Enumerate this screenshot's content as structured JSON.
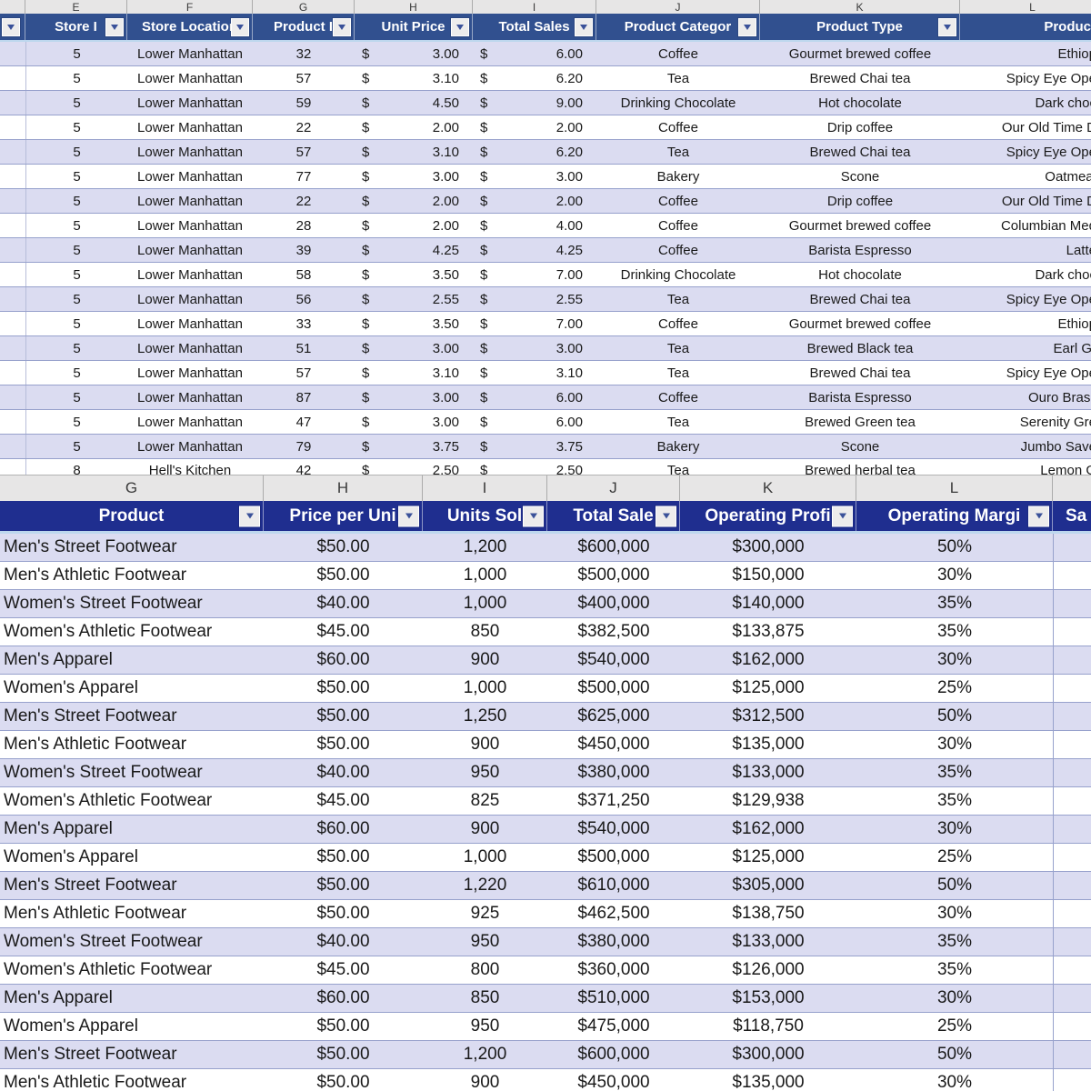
{
  "top_sheet": {
    "currency": "$",
    "column_letters": [
      "",
      "E",
      "F",
      "G",
      "H",
      "I",
      "J",
      "K",
      "L"
    ],
    "headers": [
      {
        "label": "",
        "has_filter": true
      },
      {
        "label": "Store I",
        "has_filter": true
      },
      {
        "label": "Store Location",
        "has_filter": true
      },
      {
        "label": "Product I",
        "has_filter": true
      },
      {
        "label": "Unit Price",
        "has_filter": true
      },
      {
        "label": "Total Sales",
        "has_filter": true
      },
      {
        "label": "Product Categor",
        "has_filter": true
      },
      {
        "label": "Product Type",
        "has_filter": true
      },
      {
        "label": "Product",
        "has_filter": false
      }
    ],
    "rows": [
      [
        "5",
        "Lower Manhattan",
        "32",
        "3.00",
        "6.00",
        "Coffee",
        "Gourmet brewed coffee",
        "Ethiop"
      ],
      [
        "5",
        "Lower Manhattan",
        "57",
        "3.10",
        "6.20",
        "Tea",
        "Brewed Chai tea",
        "Spicy Eye Ope"
      ],
      [
        "5",
        "Lower Manhattan",
        "59",
        "4.50",
        "9.00",
        "Drinking Chocolate",
        "Hot chocolate",
        "Dark choc"
      ],
      [
        "5",
        "Lower Manhattan",
        "22",
        "2.00",
        "2.00",
        "Coffee",
        "Drip coffee",
        "Our Old Time D"
      ],
      [
        "5",
        "Lower Manhattan",
        "57",
        "3.10",
        "6.20",
        "Tea",
        "Brewed Chai tea",
        "Spicy Eye Ope"
      ],
      [
        "5",
        "Lower Manhattan",
        "77",
        "3.00",
        "3.00",
        "Bakery",
        "Scone",
        "Oatmeal"
      ],
      [
        "5",
        "Lower Manhattan",
        "22",
        "2.00",
        "2.00",
        "Coffee",
        "Drip coffee",
        "Our Old Time D"
      ],
      [
        "5",
        "Lower Manhattan",
        "28",
        "2.00",
        "4.00",
        "Coffee",
        "Gourmet brewed coffee",
        "Columbian Med"
      ],
      [
        "5",
        "Lower Manhattan",
        "39",
        "4.25",
        "4.25",
        "Coffee",
        "Barista Espresso",
        "Latte"
      ],
      [
        "5",
        "Lower Manhattan",
        "58",
        "3.50",
        "7.00",
        "Drinking Chocolate",
        "Hot chocolate",
        "Dark choc"
      ],
      [
        "5",
        "Lower Manhattan",
        "56",
        "2.55",
        "2.55",
        "Tea",
        "Brewed Chai tea",
        "Spicy Eye Ope"
      ],
      [
        "5",
        "Lower Manhattan",
        "33",
        "3.50",
        "7.00",
        "Coffee",
        "Gourmet brewed coffee",
        "Ethiop"
      ],
      [
        "5",
        "Lower Manhattan",
        "51",
        "3.00",
        "3.00",
        "Tea",
        "Brewed Black tea",
        "Earl Gr"
      ],
      [
        "5",
        "Lower Manhattan",
        "57",
        "3.10",
        "3.10",
        "Tea",
        "Brewed Chai tea",
        "Spicy Eye Ope"
      ],
      [
        "5",
        "Lower Manhattan",
        "87",
        "3.00",
        "6.00",
        "Coffee",
        "Barista Espresso",
        "Ouro Brasil"
      ],
      [
        "5",
        "Lower Manhattan",
        "47",
        "3.00",
        "6.00",
        "Tea",
        "Brewed Green tea",
        "Serenity Gre"
      ],
      [
        "5",
        "Lower Manhattan",
        "79",
        "3.75",
        "3.75",
        "Bakery",
        "Scone",
        "Jumbo Save"
      ],
      [
        "8",
        "Hell's Kitchen",
        "42",
        "2.50",
        "2.50",
        "Tea",
        "Brewed herbal tea",
        "Lemon G"
      ]
    ]
  },
  "bottom_sheet": {
    "column_letters": [
      "G",
      "H",
      "I",
      "J",
      "K",
      "L",
      ""
    ],
    "headers": [
      {
        "label": "Product",
        "has_filter": true
      },
      {
        "label": "Price per Uni",
        "has_filter": true
      },
      {
        "label": "Units Sol",
        "has_filter": true
      },
      {
        "label": "Total Sale",
        "has_filter": true
      },
      {
        "label": "Operating Profi",
        "has_filter": true
      },
      {
        "label": "Operating Margi",
        "has_filter": true
      },
      {
        "label": "Sa",
        "has_filter": false
      }
    ],
    "rows": [
      [
        "Men's Street Footwear",
        "$50.00",
        "1,200",
        "$600,000",
        "$300,000",
        "50%",
        ""
      ],
      [
        "Men's Athletic Footwear",
        "$50.00",
        "1,000",
        "$500,000",
        "$150,000",
        "30%",
        ""
      ],
      [
        "Women's Street Footwear",
        "$40.00",
        "1,000",
        "$400,000",
        "$140,000",
        "35%",
        ""
      ],
      [
        "Women's Athletic Footwear",
        "$45.00",
        "850",
        "$382,500",
        "$133,875",
        "35%",
        ""
      ],
      [
        "Men's Apparel",
        "$60.00",
        "900",
        "$540,000",
        "$162,000",
        "30%",
        ""
      ],
      [
        "Women's Apparel",
        "$50.00",
        "1,000",
        "$500,000",
        "$125,000",
        "25%",
        ""
      ],
      [
        "Men's Street Footwear",
        "$50.00",
        "1,250",
        "$625,000",
        "$312,500",
        "50%",
        ""
      ],
      [
        "Men's Athletic Footwear",
        "$50.00",
        "900",
        "$450,000",
        "$135,000",
        "30%",
        ""
      ],
      [
        "Women's Street Footwear",
        "$40.00",
        "950",
        "$380,000",
        "$133,000",
        "35%",
        ""
      ],
      [
        "Women's Athletic Footwear",
        "$45.00",
        "825",
        "$371,250",
        "$129,938",
        "35%",
        ""
      ],
      [
        "Men's Apparel",
        "$60.00",
        "900",
        "$540,000",
        "$162,000",
        "30%",
        ""
      ],
      [
        "Women's Apparel",
        "$50.00",
        "1,000",
        "$500,000",
        "$125,000",
        "25%",
        ""
      ],
      [
        "Men's Street Footwear",
        "$50.00",
        "1,220",
        "$610,000",
        "$305,000",
        "50%",
        ""
      ],
      [
        "Men's Athletic Footwear",
        "$50.00",
        "925",
        "$462,500",
        "$138,750",
        "30%",
        ""
      ],
      [
        "Women's Street Footwear",
        "$40.00",
        "950",
        "$380,000",
        "$133,000",
        "35%",
        ""
      ],
      [
        "Women's Athletic Footwear",
        "$45.00",
        "800",
        "$360,000",
        "$126,000",
        "35%",
        ""
      ],
      [
        "Men's Apparel",
        "$60.00",
        "850",
        "$510,000",
        "$153,000",
        "30%",
        ""
      ],
      [
        "Women's Apparel",
        "$50.00",
        "950",
        "$475,000",
        "$118,750",
        "25%",
        ""
      ],
      [
        "Men's Street Footwear",
        "$50.00",
        "1,200",
        "$600,000",
        "$300,000",
        "50%",
        ""
      ],
      [
        "Men's Athletic Footwear",
        "$50.00",
        "900",
        "$450,000",
        "$135,000",
        "30%",
        ""
      ]
    ]
  },
  "colors": {
    "top_header_bg": "#31508F",
    "bottom_header_bg": "#1F2E8F",
    "stripe_row_bg": "#DBDCF1",
    "row_separator": "#97A1CC",
    "column_letter_bg": "#E7E6E6",
    "header_underline": "#BDD7EE",
    "filter_arrow": "#3A5199",
    "header_text": "#FFFFFF"
  }
}
